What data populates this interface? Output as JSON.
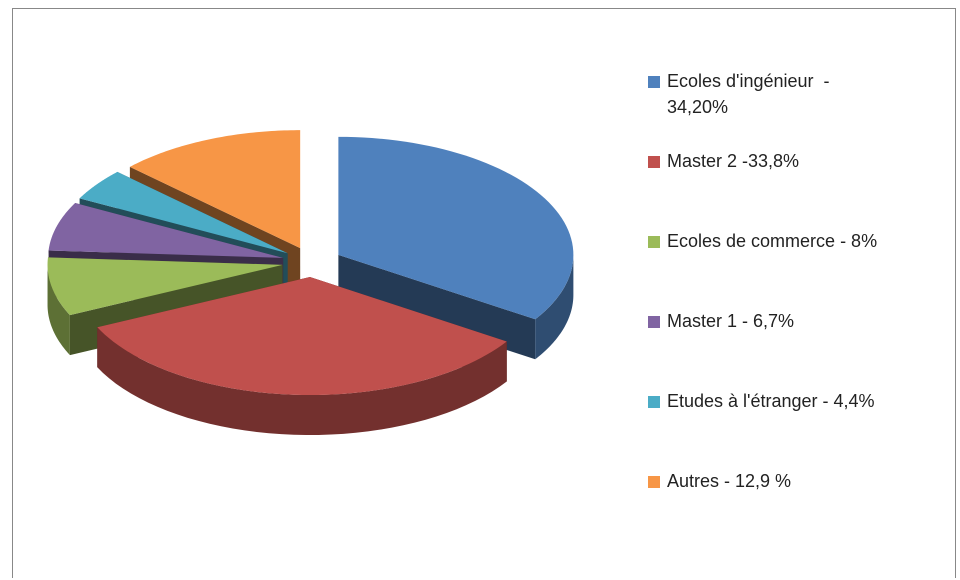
{
  "chart_data": {
    "type": "pie",
    "categories": [
      "Ecoles d'ingénieur  - 34,20%",
      "Master 2 -33,8%",
      "Ecoles de commerce - 8%",
      "Master 1 - 6,7%",
      "Etudes à l'étranger - 4,4%",
      "Autres - 12,9 %"
    ],
    "values": [
      34.2,
      33.8,
      8,
      6.7,
      4.4,
      12.9
    ],
    "colors": [
      "#4F81BD",
      "#C0504D",
      "#9BBB59",
      "#8064A2",
      "#4BACC6",
      "#F79646"
    ],
    "legend": "right"
  }
}
